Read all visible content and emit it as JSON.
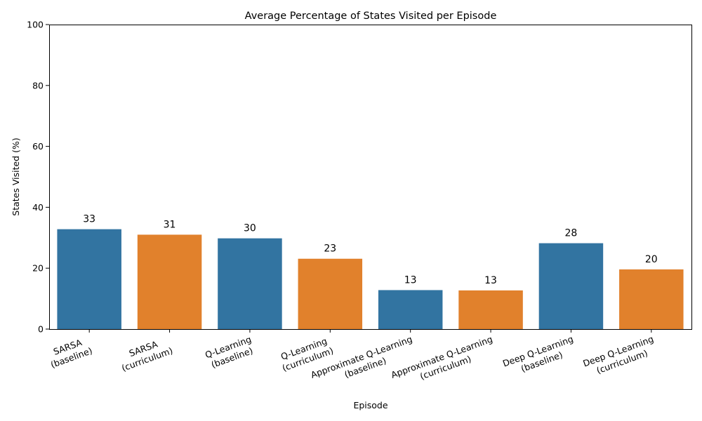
{
  "chart_data": {
    "type": "bar",
    "title": "Average Percentage of States Visited per Episode",
    "xlabel": "Episode",
    "ylabel": "States Visited (%)",
    "ylim": [
      0,
      100
    ],
    "yticks": [
      0,
      20,
      40,
      60,
      80,
      100
    ],
    "grid": false,
    "legend": "none",
    "categories": [
      [
        "SARSA",
        "(baseline)"
      ],
      [
        "SARSA",
        "(curriculum)"
      ],
      [
        "Q-Learning",
        "(baseline)"
      ],
      [
        "Q-Learning",
        "(curriculum)"
      ],
      [
        "Approximate Q-Learning",
        "(baseline)"
      ],
      [
        "Approximate Q-Learning",
        "(curriculum)"
      ],
      [
        "Deep Q-Learning",
        "(baseline)"
      ],
      [
        "Deep Q-Learning",
        "(curriculum)"
      ]
    ],
    "values": [
      32.8,
      31.0,
      29.8,
      23.1,
      12.8,
      12.7,
      28.2,
      19.6
    ],
    "data_labels": [
      "33",
      "31",
      "30",
      "23",
      "13",
      "13",
      "28",
      "20"
    ],
    "colors": [
      "#3274a1",
      "#e1812c",
      "#3274a1",
      "#e1812c",
      "#3274a1",
      "#e1812c",
      "#3274a1",
      "#e1812c"
    ]
  }
}
